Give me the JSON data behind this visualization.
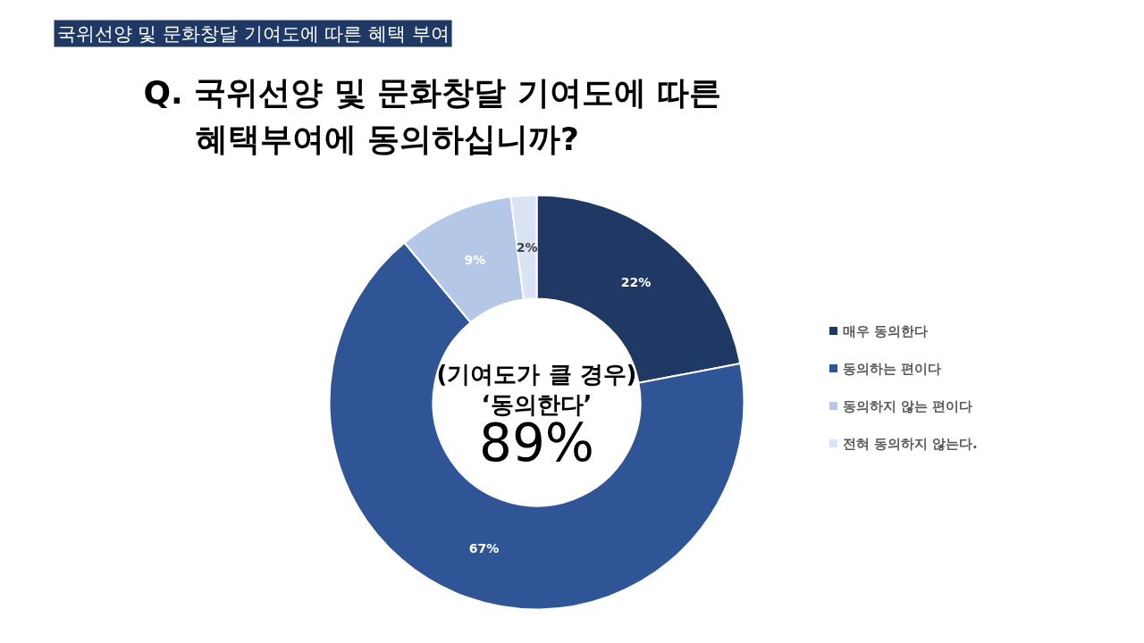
{
  "chart_data": {
    "type": "donut",
    "title": "Q. 국위선양 및 문화창달 기여도에 따른\n혜택부여에 동의하십니까?",
    "subtitle": "국위선양 및 문화창달 기여도에 따른 혜택 부여",
    "categories": [
      "매우 동의한다",
      "동의하는 편이다",
      "동의하지 않는 편이다",
      "전혀 동의하지 않는다."
    ],
    "values": [
      22,
      67,
      9,
      2
    ],
    "colors": [
      "#1f3864",
      "#2f5597",
      "#b4c7e7",
      "#dae3f3"
    ],
    "value_labels": [
      "22%",
      "67%",
      "9%",
      "2%"
    ],
    "annotations": [
      "(기여도가 클 경우)",
      "‘동의한다’",
      "89%"
    ],
    "legend": "right"
  }
}
